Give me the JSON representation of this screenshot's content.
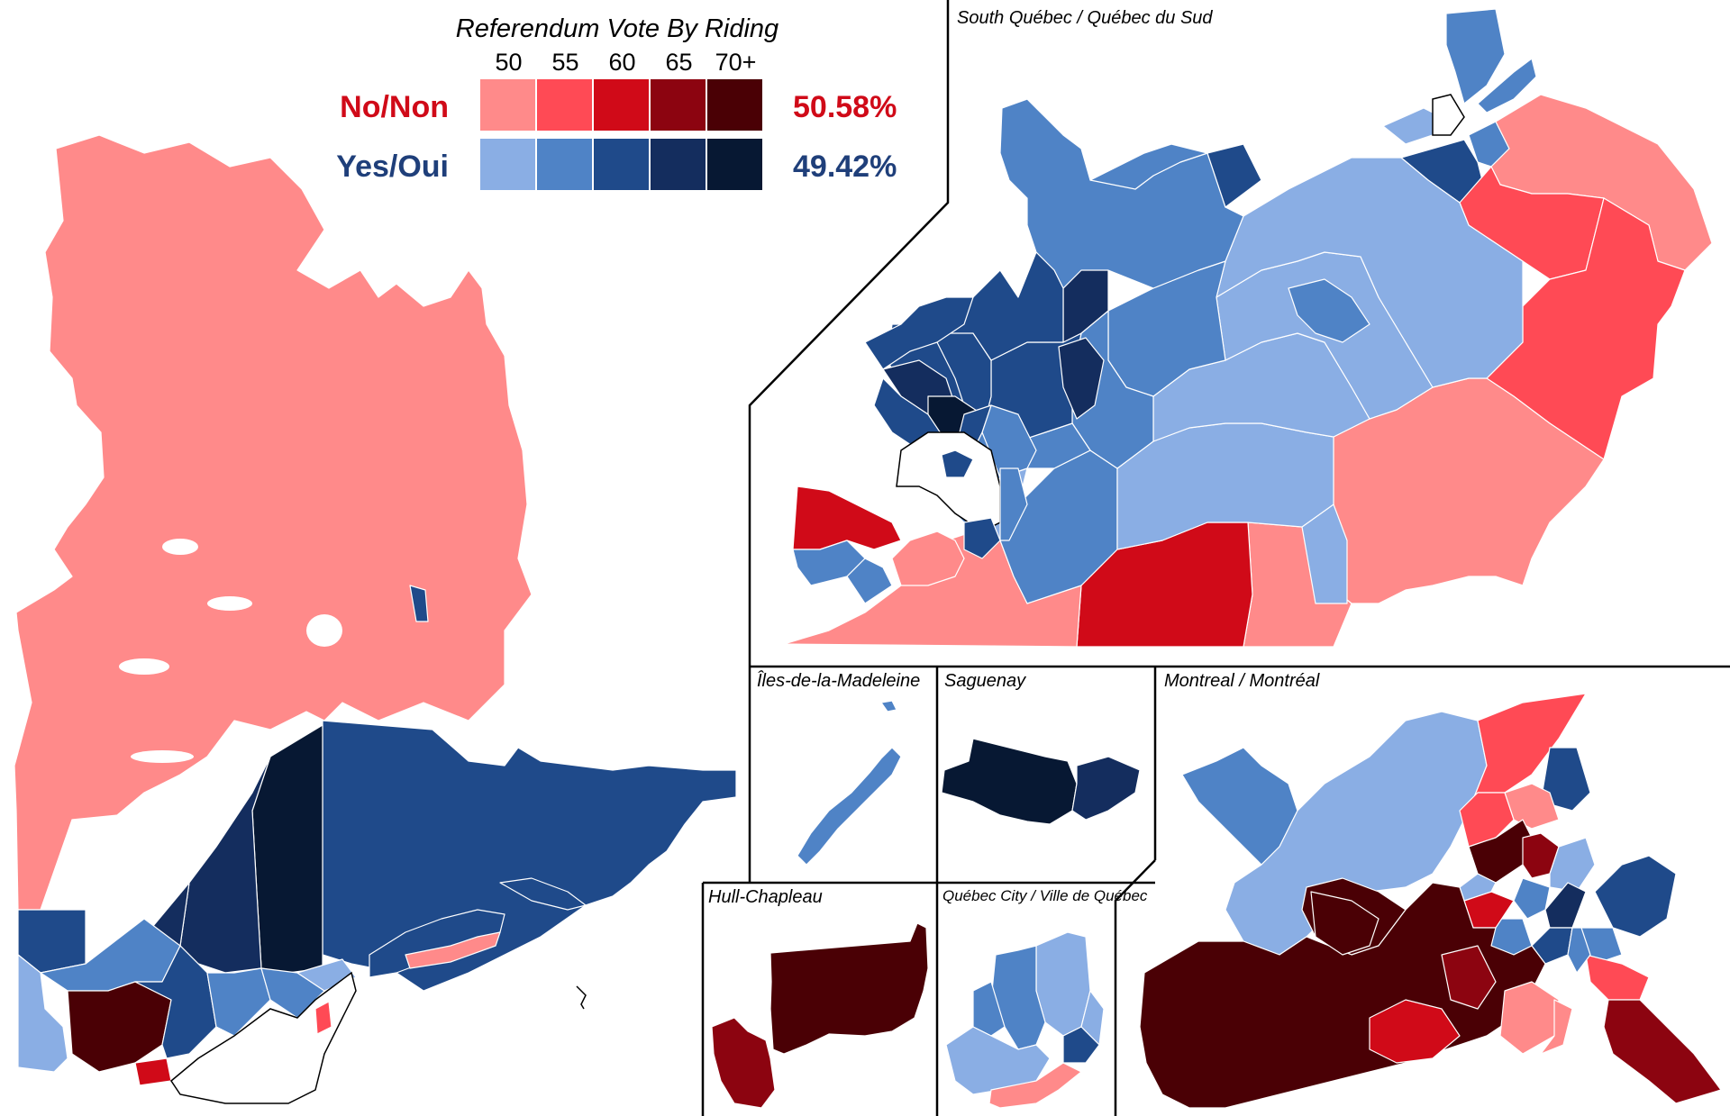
{
  "colors": {
    "no": [
      "#FF8A8A",
      "#FF4A55",
      "#D00A18",
      "#8C0410",
      "#4A0005"
    ],
    "yes": [
      "#8AAEE4",
      "#4F83C6",
      "#1F4A8A",
      "#142D5E",
      "#071833"
    ]
  },
  "legend": {
    "title": "Referendum Vote By Riding",
    "ticks": [
      "50",
      "55",
      "60",
      "65",
      "70+"
    ],
    "rows": [
      {
        "label": "No/Non",
        "pct": "50.58%",
        "text_color": "#D00A18",
        "palette": "no"
      },
      {
        "label": "Yes/Oui",
        "pct": "49.42%",
        "text_color": "#1F3F7A",
        "palette": "yes"
      }
    ]
  },
  "insets": {
    "south": "South Québec / Québec du Sud",
    "madeleine": "Îles-de-la-Madeleine",
    "saguenay": "Saguenay",
    "montreal": "Montreal / Montréal",
    "hull": "Hull-Chapleau",
    "quebec_city": "Québec City / Ville de Québec"
  }
}
